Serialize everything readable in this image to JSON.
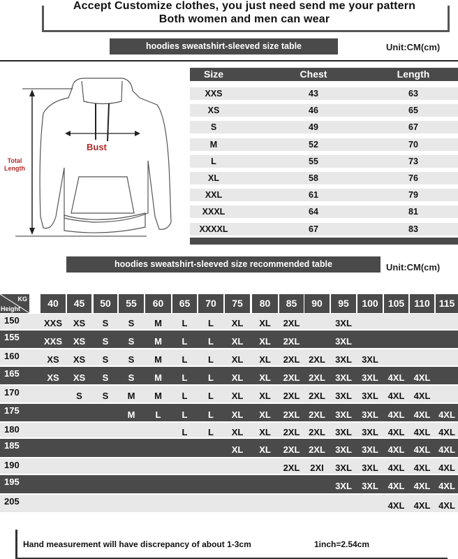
{
  "header": {
    "line1": "Accept Customize clothes, you just need send me your pattern",
    "line2": "Both women and men can wear"
  },
  "size_table": {
    "banner": "hoodies sweatshirt-sleeved size  table",
    "unit": "Unit:CM(cm)",
    "columns": [
      "Size",
      "Chest",
      "Length"
    ],
    "rows": [
      [
        "XXS",
        "43",
        "63"
      ],
      [
        "XS",
        "46",
        "65"
      ],
      [
        "S",
        "49",
        "67"
      ],
      [
        "M",
        "52",
        "70"
      ],
      [
        "L",
        "55",
        "73"
      ],
      [
        "XL",
        "58",
        "76"
      ],
      [
        "XXL",
        "61",
        "79"
      ],
      [
        "XXXL",
        "64",
        "81"
      ],
      [
        "XXXXL",
        "67",
        "83"
      ]
    ]
  },
  "diagram": {
    "bust_label": "Bust",
    "length_label_1": "Total",
    "length_label_2": "Length",
    "label_color": "#b02a2a"
  },
  "recommend_table": {
    "banner": "hoodies sweatshirt-sleeved size recommended table",
    "unit": "Unit:CM(cm)",
    "corner_top": "KG",
    "corner_bottom": "Height",
    "weights": [
      "40",
      "45",
      "50",
      "55",
      "60",
      "65",
      "70",
      "75",
      "80",
      "85",
      "90",
      "95",
      "100",
      "105",
      "110",
      "115"
    ],
    "rows": [
      {
        "height": "150",
        "sizes": [
          "XXS",
          "XS",
          "S",
          "S",
          "M",
          "L",
          "L",
          "XL",
          "XL",
          "2XL",
          "",
          "3XL",
          "",
          "",
          "",
          ""
        ]
      },
      {
        "height": "155",
        "sizes": [
          "XXS",
          "XS",
          "S",
          "S",
          "M",
          "L",
          "L",
          "XL",
          "XL",
          "2XL",
          "",
          "3XL",
          "",
          "",
          "",
          ""
        ]
      },
      {
        "height": "160",
        "sizes": [
          "XS",
          "XS",
          "S",
          "S",
          "M",
          "L",
          "L",
          "XL",
          "XL",
          "2XL",
          "2XL",
          "3XL",
          "3XL",
          "",
          "",
          ""
        ]
      },
      {
        "height": "165",
        "sizes": [
          "XS",
          "XS",
          "S",
          "S",
          "M",
          "L",
          "L",
          "XL",
          "XL",
          "2XL",
          "2XL",
          "3XL",
          "3XL",
          "4XL",
          "4XL",
          ""
        ]
      },
      {
        "height": "170",
        "sizes": [
          "",
          "S",
          "S",
          "M",
          "M",
          "L",
          "L",
          "XL",
          "XL",
          "2XL",
          "2XL",
          "3XL",
          "3XL",
          "4XL",
          "4XL",
          ""
        ]
      },
      {
        "height": "175",
        "sizes": [
          "",
          "",
          "",
          "M",
          "L",
          "L",
          "L",
          "XL",
          "XL",
          "2XL",
          "2XL",
          "3XL",
          "3XL",
          "4XL",
          "4XL",
          "4XL"
        ]
      },
      {
        "height": "180",
        "sizes": [
          "",
          "",
          "",
          "",
          "",
          "L",
          "L",
          "XL",
          "XL",
          "2XL",
          "2XL",
          "3XL",
          "3XL",
          "4XL",
          "4XL",
          "4XL"
        ]
      },
      {
        "height": "185",
        "sizes": [
          "",
          "",
          "",
          "",
          "",
          "",
          "",
          "XL",
          "XL",
          "2XL",
          "2XL",
          "3XL",
          "3XL",
          "4XL",
          "4XL",
          "4XL"
        ]
      },
      {
        "height": "190",
        "sizes": [
          "",
          "",
          "",
          "",
          "",
          "",
          "",
          "",
          "",
          "2XL",
          "2XI",
          "3XL",
          "3XL",
          "4XL",
          "4XL",
          "4XL"
        ]
      },
      {
        "height": "195",
        "sizes": [
          "",
          "",
          "",
          "",
          "",
          "",
          "",
          "",
          "",
          "",
          "",
          "3XL",
          "3XL",
          "4XL",
          "4XL",
          "4XL"
        ]
      },
      {
        "height": "205",
        "sizes": [
          "",
          "",
          "",
          "",
          "",
          "",
          "",
          "",
          "",
          "",
          "",
          "",
          "",
          "4XL",
          "4XL",
          "4XL"
        ]
      }
    ]
  },
  "footer": {
    "note": "Hand measurement will have discrepancy of about  1-3cm",
    "conversion": "1inch=2.54cm"
  },
  "colors": {
    "dark_band": "#4a4a4a",
    "light_band": "#e8e8e8",
    "label_red": "#b02a2a"
  }
}
